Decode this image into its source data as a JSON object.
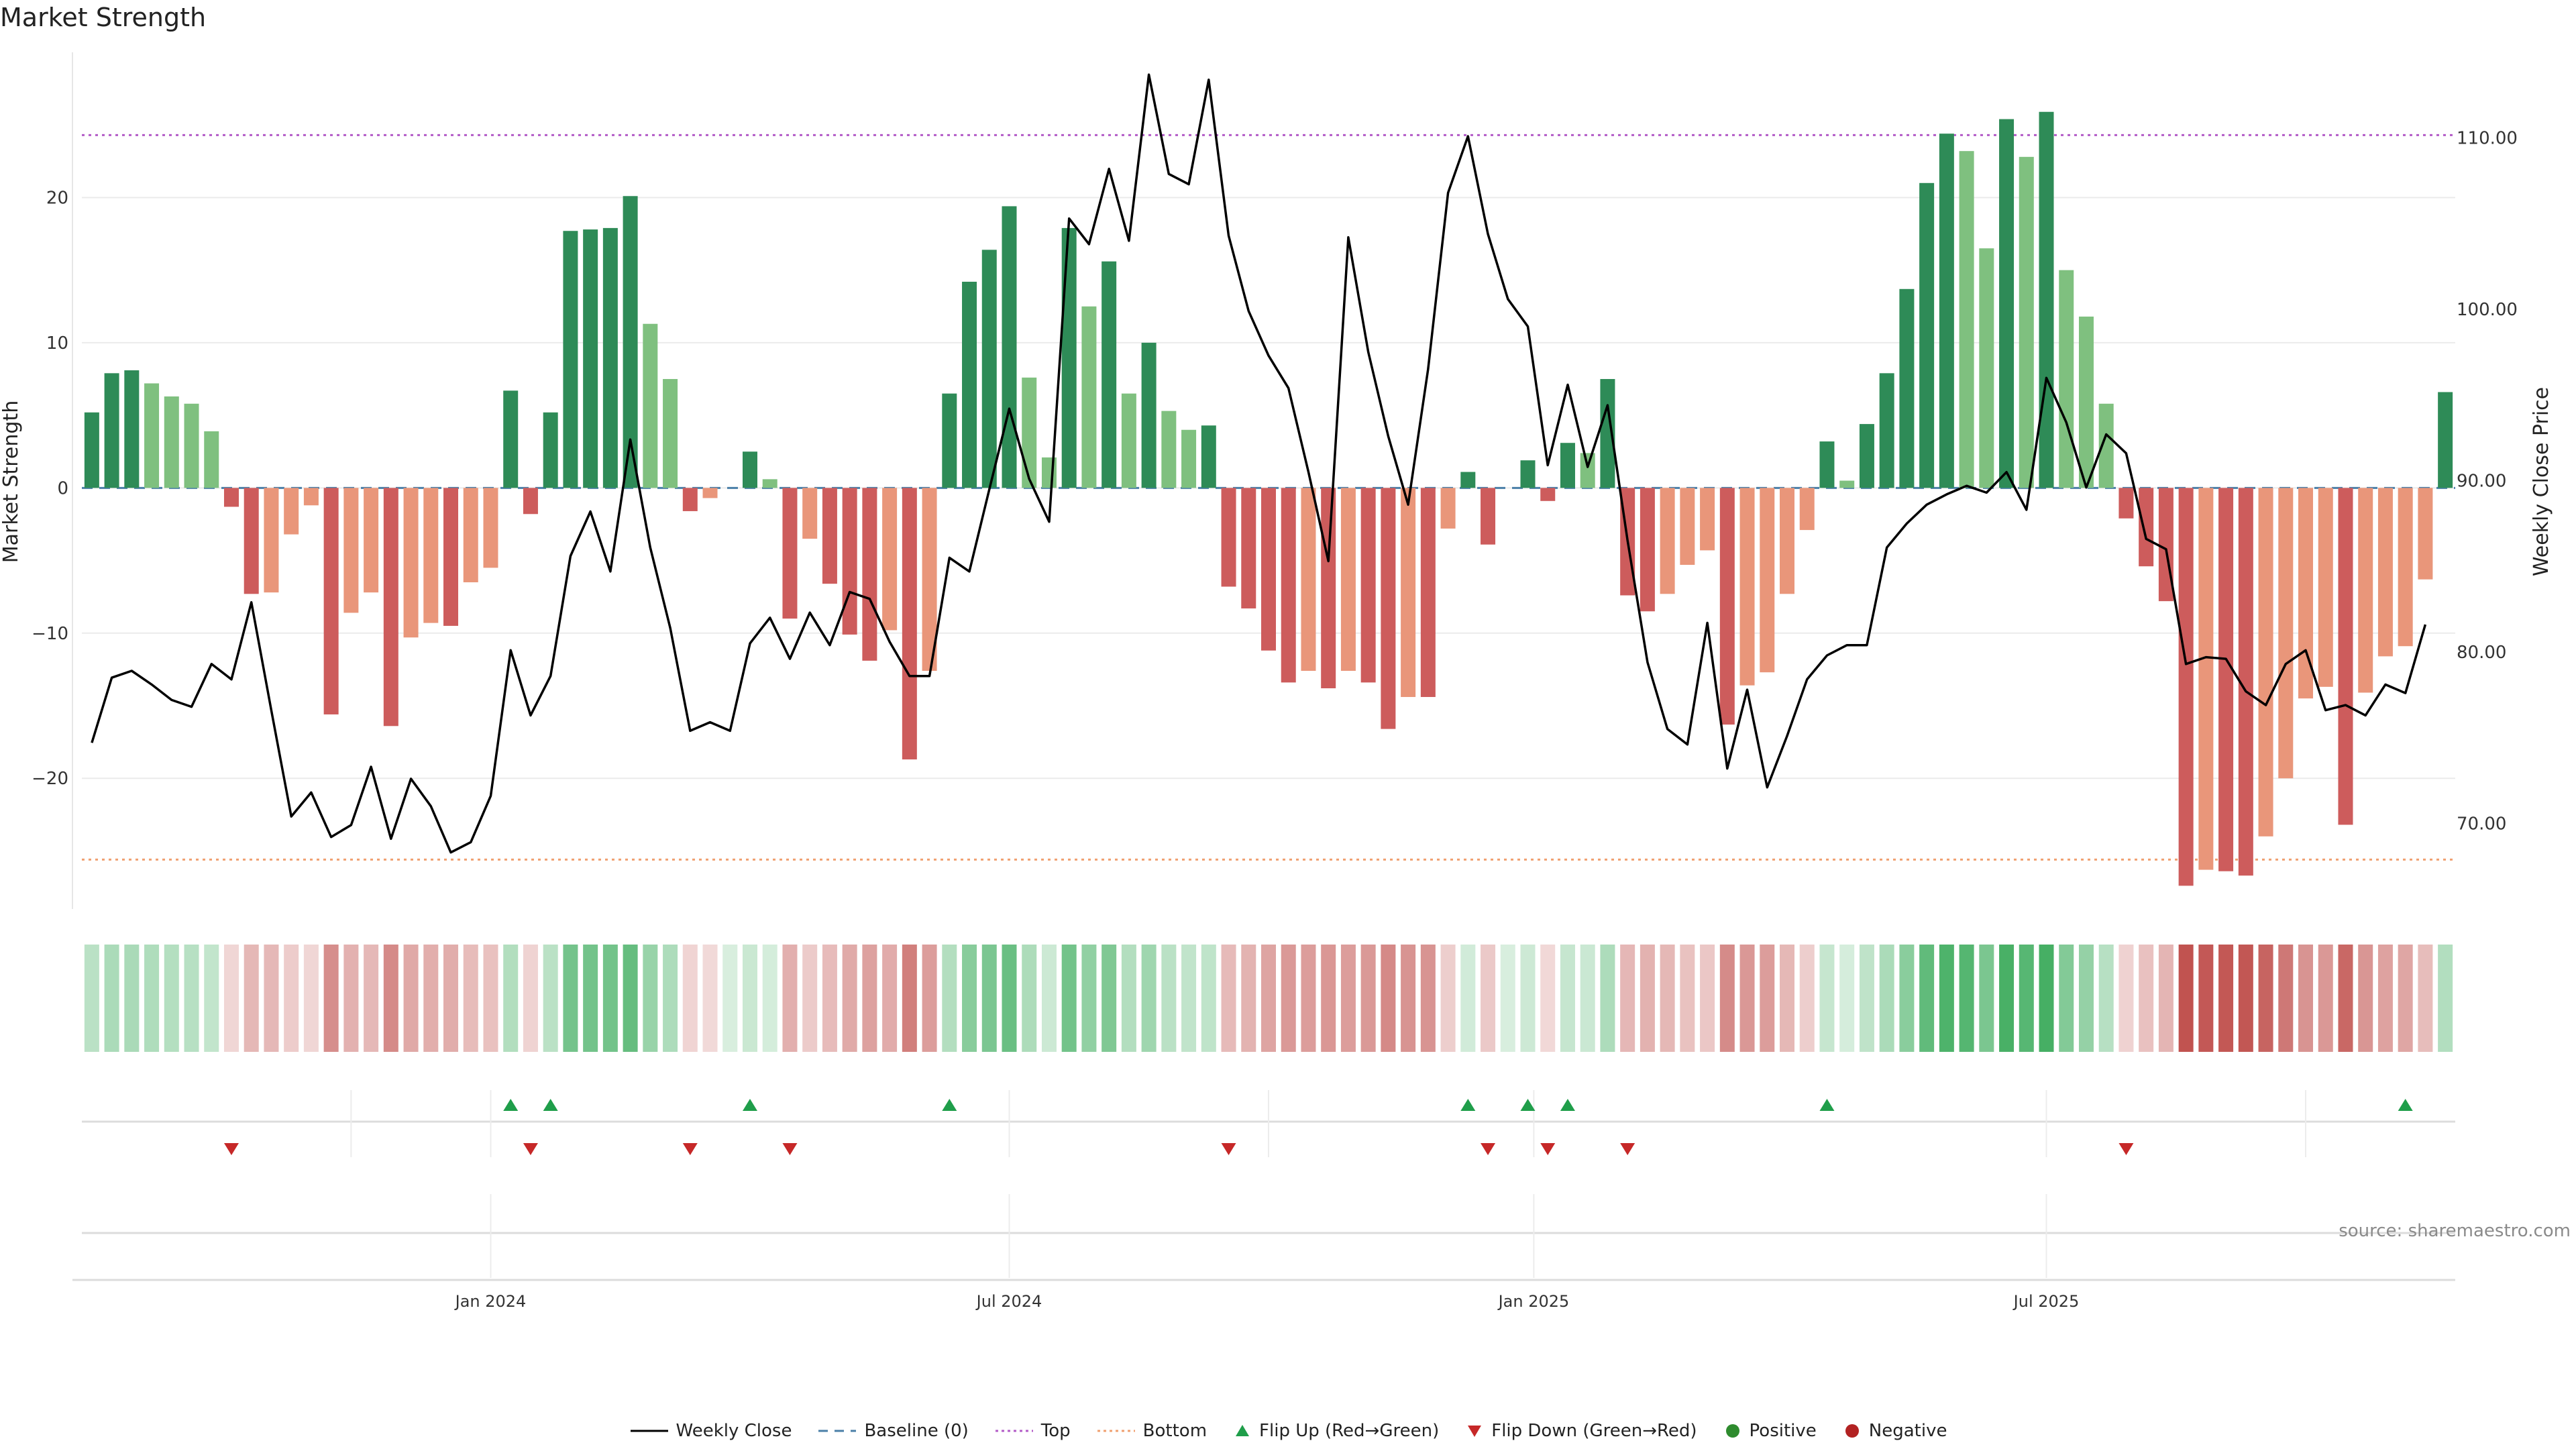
{
  "title": "Market Strength",
  "source": "source: sharemaestro.com",
  "colors": {
    "strong_up": "#2e8b57",
    "weak_up": "#7fc07f",
    "strong_down": "#cd5c5c",
    "weak_down": "#e9967a",
    "close_line": "#000000",
    "baseline": "#4a7fa8",
    "top": "#b35cc8",
    "bottom": "#f0a070",
    "flip_up": "#1f9e4a",
    "flip_down": "#c62828",
    "positive": "#2e8b2e",
    "negative": "#b22222"
  },
  "legend": [
    {
      "key": "close",
      "label": "Weekly Close"
    },
    {
      "key": "baseline",
      "label": "Baseline (0)"
    },
    {
      "key": "top",
      "label": "Top"
    },
    {
      "key": "bottom",
      "label": "Bottom"
    },
    {
      "key": "flip_up",
      "label": "Flip Up (Red→Green)"
    },
    {
      "key": "flip_down",
      "label": "Flip Down (Green→Red)"
    },
    {
      "key": "positive",
      "label": "Positive"
    },
    {
      "key": "negative",
      "label": "Negative"
    }
  ],
  "chart_data": {
    "type": "bar",
    "title": "Market Strength",
    "ylabel_left": "Market Strength",
    "ylabel_right": "Weekly Close Price",
    "ylim_left": [
      -29,
      30
    ],
    "ylim_right": [
      65,
      115
    ],
    "left_ticks": [
      20,
      10,
      0,
      -10,
      -20
    ],
    "left_tick_labels": [
      "20",
      "10",
      "0",
      "−10",
      "−20"
    ],
    "right_ticks": [
      110,
      100,
      90,
      80,
      70
    ],
    "right_tick_labels": [
      "110.00",
      "100.00",
      "90.00",
      "80.00",
      "70.00"
    ],
    "top_line": 24.3,
    "bottom_line": -25.6,
    "x_start_week": -20,
    "x_ticks": [
      {
        "label": "Jan 2024",
        "week": 0
      },
      {
        "label": "Jul 2024",
        "week": 26
      },
      {
        "label": "Jan 2025",
        "week": 52.3
      },
      {
        "label": "Jul 2025",
        "week": 78
      }
    ],
    "strength": [
      5.2,
      7.9,
      8.1,
      7.2,
      6.3,
      5.8,
      3.9,
      -1.3,
      -7.3,
      -7.2,
      -3.2,
      -1.2,
      -15.6,
      -8.6,
      -7.2,
      -16.4,
      -10.3,
      -9.3,
      -9.5,
      -6.5,
      -5.5,
      6.7,
      -1.8,
      5.2,
      17.7,
      17.8,
      17.9,
      20.1,
      11.3,
      7.5,
      -1.6,
      -0.7,
      0,
      2.5,
      0.6,
      -9,
      -3.5,
      -6.6,
      -10.1,
      -11.9,
      -9.8,
      -18.7,
      -12.6,
      6.5,
      14.2,
      16.4,
      19.4,
      7.6,
      2.1,
      17.9,
      12.5,
      15.6,
      6.5,
      10,
      5.3,
      4,
      4.3,
      -6.8,
      -8.3,
      -11.2,
      -13.4,
      -12.6,
      -13.8,
      -12.6,
      -13.4,
      -16.6,
      -14.4,
      -14.4,
      -2.8,
      1.1,
      -3.9,
      0,
      1.9,
      -0.9,
      3.1,
      2.4,
      7.5,
      -7.4,
      -8.5,
      -7.3,
      -5.3,
      -4.3,
      -16.3,
      -13.6,
      -12.7,
      -7.3,
      -2.9,
      3.2,
      0.5,
      4.4,
      7.9,
      13.7,
      21,
      24.4,
      23.2,
      16.5,
      25.4,
      22.8,
      25.9,
      15,
      11.8,
      5.8,
      -2.1,
      -5.4,
      -7.8,
      -27.4,
      -26.3,
      -26.4,
      -26.7,
      -24,
      -20,
      -14.5,
      -13.7,
      -23.2,
      -14.1,
      -11.6,
      -10.9,
      -6.3,
      6.6
    ],
    "strength_shade": [
      "strong",
      "strong",
      "strong",
      "weak",
      "weak",
      "weak",
      "weak",
      "strong",
      "strong",
      "weak",
      "weak",
      "weak",
      "strong",
      "weak",
      "weak",
      "strong",
      "weak",
      "weak",
      "strong",
      "weak",
      "weak",
      "strong",
      "strong",
      "strong",
      "strong",
      "strong",
      "strong",
      "strong",
      "weak",
      "weak",
      "strong",
      "weak",
      "weak",
      "strong",
      "weak",
      "strong",
      "weak",
      "strong",
      "strong",
      "strong",
      "weak",
      "strong",
      "weak",
      "strong",
      "strong",
      "strong",
      "strong",
      "weak",
      "weak",
      "strong",
      "weak",
      "strong",
      "weak",
      "strong",
      "weak",
      "weak",
      "strong",
      "strong",
      "strong",
      "strong",
      "strong",
      "weak",
      "strong",
      "weak",
      "strong",
      "strong",
      "weak",
      "strong",
      "weak",
      "strong",
      "strong",
      "weak",
      "strong",
      "strong",
      "strong",
      "weak",
      "strong",
      "strong",
      "strong",
      "weak",
      "weak",
      "weak",
      "strong",
      "weak",
      "weak",
      "weak",
      "weak",
      "strong",
      "weak",
      "strong",
      "strong",
      "strong",
      "strong",
      "strong",
      "weak",
      "weak",
      "strong",
      "weak",
      "strong",
      "weak",
      "weak",
      "weak",
      "strong",
      "strong",
      "strong",
      "strong",
      "weak",
      "strong",
      "strong",
      "weak",
      "weak",
      "weak",
      "weak",
      "strong",
      "weak",
      "weak",
      "weak",
      "weak",
      "strong"
    ],
    "close": [
      74.7,
      78.5,
      78.9,
      78.1,
      77.2,
      76.8,
      79.3,
      78.4,
      82.9,
      76.6,
      70.4,
      71.8,
      69.2,
      69.9,
      73.3,
      69.1,
      72.6,
      71,
      68.3,
      68.9,
      71.6,
      80.1,
      76.3,
      78.6,
      85.6,
      88.2,
      84.7,
      92.4,
      86.1,
      81.4,
      75.4,
      75.9,
      75.4,
      80.5,
      82,
      79.6,
      82.3,
      80.4,
      83.5,
      83.1,
      80.6,
      78.6,
      78.6,
      85.5,
      84.7,
      89.5,
      94.2,
      90.1,
      87.6,
      105.3,
      103.8,
      108.2,
      104,
      113.7,
      107.9,
      107.3,
      113.4,
      104.3,
      99.9,
      97.3,
      95.4,
      90.5,
      85.3,
      104.2,
      97.5,
      92.6,
      88.6,
      96.5,
      106.8,
      110.1,
      104.4,
      100.6,
      99,
      90.9,
      95.6,
      90.8,
      94.4,
      86.5,
      79.4,
      75.5,
      74.6,
      81.7,
      73.2,
      77.8,
      72.1,
      75.1,
      78.4,
      79.8,
      80.4,
      80.4,
      86.1,
      87.5,
      88.6,
      89.2,
      89.7,
      89.3,
      90.5,
      88.3,
      96,
      93.4,
      89.6,
      92.7,
      91.6,
      86.6,
      86,
      79.3,
      79.7,
      79.6,
      77.7,
      76.9,
      79.3,
      80.1,
      76.6,
      76.9,
      76.3,
      78.1,
      77.6,
      81.6
    ],
    "flips_up_weeks": [
      1,
      3,
      13,
      23,
      49,
      52,
      54,
      67,
      96
    ],
    "flips_down_weeks": [
      -13,
      2,
      10,
      15,
      37,
      50,
      53,
      57,
      82
    ]
  }
}
